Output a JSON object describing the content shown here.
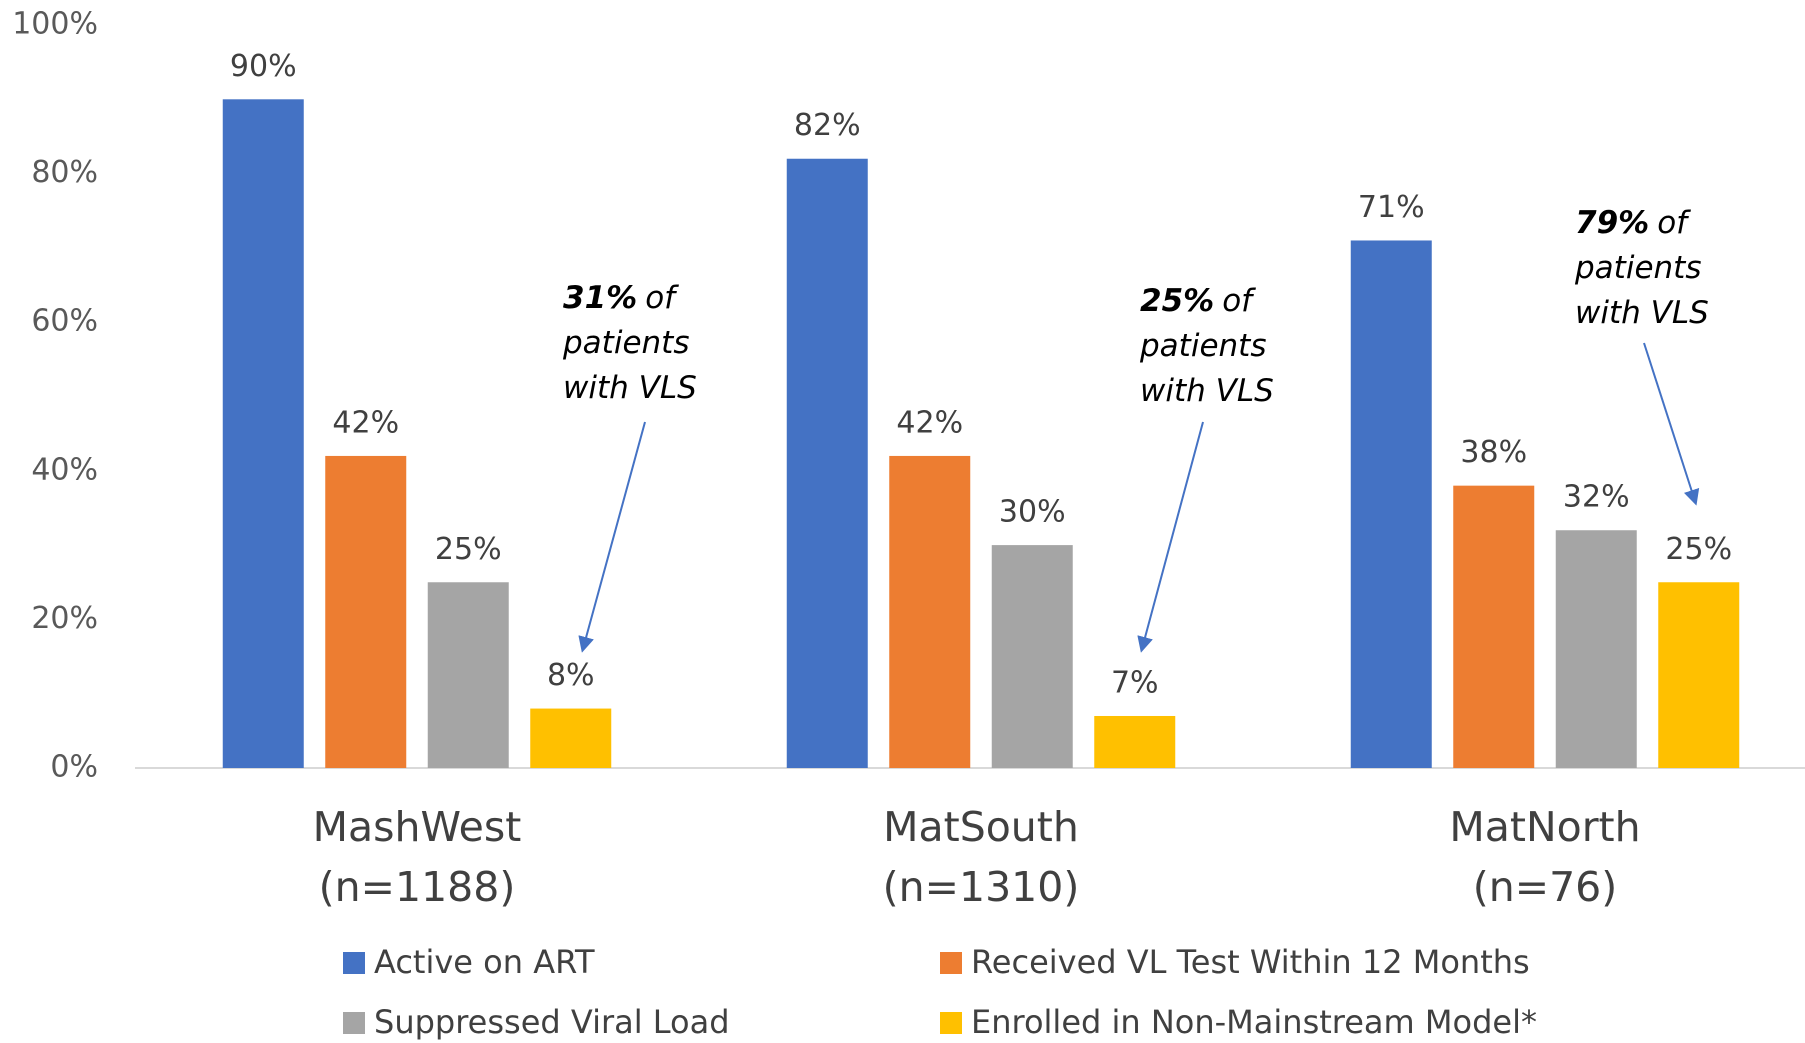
{
  "chart_data": {
    "type": "bar",
    "categories": [
      [
        "MashWest",
        "(n=1188)"
      ],
      [
        "MatSouth",
        "(n=1310)"
      ],
      [
        "MatNorth",
        "(n=76)"
      ]
    ],
    "series": [
      {
        "name": "Active on ART",
        "color": "#4472c4",
        "values": [
          90,
          82,
          71
        ],
        "value_labels": [
          "90%",
          "82%",
          "71%"
        ]
      },
      {
        "name": "Received VL Test Within 12 Months",
        "color": "#ed7d31",
        "values": [
          42,
          42,
          38
        ],
        "value_labels": [
          "42%",
          "42%",
          "38%"
        ]
      },
      {
        "name": "Suppressed Viral Load",
        "color": "#a5a5a5",
        "values": [
          25,
          30,
          32
        ],
        "value_labels": [
          "25%",
          "30%",
          "32%"
        ]
      },
      {
        "name": "Enrolled in Non-Mainstream Model*",
        "color": "#ffc000",
        "values": [
          8,
          7,
          25
        ],
        "value_labels": [
          "8%",
          "7%",
          "25%"
        ]
      }
    ],
    "ylim": [
      0,
      100
    ],
    "yticks": [
      {
        "value": 0,
        "label": "0%"
      },
      {
        "value": 20,
        "label": "20%"
      },
      {
        "value": 40,
        "label": "40%"
      },
      {
        "value": 60,
        "label": "60%"
      },
      {
        "value": 80,
        "label": "80%"
      },
      {
        "value": 100,
        "label": "100%"
      }
    ],
    "grid": false,
    "annotations": [
      {
        "emphasis": "31%",
        "lines": [
          "of",
          "patients",
          "with VLS"
        ]
      },
      {
        "emphasis": "25%",
        "lines": [
          "of",
          "patients",
          "with VLS"
        ]
      },
      {
        "emphasis": "79%",
        "lines": [
          "of",
          "patients",
          "with VLS"
        ]
      }
    ]
  }
}
